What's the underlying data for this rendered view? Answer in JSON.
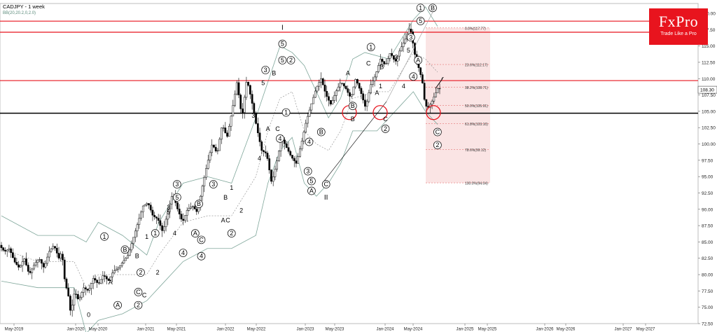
{
  "chart_data": {
    "type": "candlestick",
    "title": "CADJPY - 1 week",
    "indicator": "BB(20,20.2,0,2.0)",
    "current_price": "108.30",
    "y_range": [
      72.5,
      121.5
    ],
    "y_ticks": [
      "120.00",
      "117.50",
      "115.00",
      "112.50",
      "110.00",
      "107.50",
      "105.00",
      "102.50",
      "100.00",
      "97.50",
      "95.00",
      "92.50",
      "90.00",
      "87.50",
      "85.00",
      "82.50",
      "80.00",
      "77.50",
      "75.00",
      "72.50"
    ],
    "x_ticks": [
      "May-2019",
      "Jan-2020",
      "May-2020",
      "Jan-2021",
      "May-2021",
      "Jan-2022",
      "May-2022",
      "Jan-2023",
      "May-2023",
      "Jan-2024",
      "May-2024",
      "Jan-2025",
      "May-2025",
      "Jan-2026",
      "May-2026",
      "Jan-2027",
      "May-2027"
    ],
    "horizontal_lines": [
      {
        "value": 118.8,
        "color": "#e8141e"
      },
      {
        "value": 117.1,
        "color": "#e8141e"
      },
      {
        "value": 109.7,
        "color": "#e8141e"
      },
      {
        "value": 104.7,
        "color": "#000000"
      }
    ],
    "fib_levels": [
      {
        "label": "0.0%(117.77)",
        "value": 117.77
      },
      {
        "label": "23.6%(112.17)",
        "value": 112.17
      },
      {
        "label": "38.2%(108.71)",
        "value": 108.71
      },
      {
        "label": "50.0%(105.91)",
        "value": 105.91
      },
      {
        "label": "61.8%(103.10)",
        "value": 103.1
      },
      {
        "label": "78.6%(99.12)",
        "value": 99.12
      },
      {
        "label": "100.0%(94.04)",
        "value": 94.04
      }
    ],
    "price_path": [
      [
        0.0,
        84.5
      ],
      [
        0.5,
        83.5
      ],
      [
        1.0,
        84.0
      ],
      [
        1.5,
        82.0
      ],
      [
        2.0,
        81.0
      ],
      [
        2.5,
        82.5
      ],
      [
        3.0,
        80.0
      ],
      [
        3.5,
        81.5
      ],
      [
        4.0,
        82.5
      ],
      [
        4.5,
        81.0
      ],
      [
        5.0,
        83.5
      ],
      [
        5.5,
        84.5
      ],
      [
        6.0,
        82.5
      ],
      [
        6.3,
        83.5
      ],
      [
        6.6,
        79.0
      ],
      [
        7.0,
        76.5
      ],
      [
        7.2,
        74.0
      ],
      [
        7.6,
        77.5
      ],
      [
        8.0,
        76.0
      ],
      [
        8.5,
        78.0
      ],
      [
        9.0,
        77.5
      ],
      [
        9.5,
        79.5
      ],
      [
        10.0,
        78.5
      ],
      [
        10.5,
        80.0
      ],
      [
        11.0,
        79.0
      ],
      [
        11.5,
        80.5
      ],
      [
        12.0,
        81.0
      ],
      [
        12.5,
        82.0
      ],
      [
        13.0,
        83.0
      ],
      [
        13.5,
        85.5
      ],
      [
        14.0,
        88.0
      ],
      [
        14.5,
        90.5
      ],
      [
        15.0,
        91.0
      ],
      [
        15.5,
        89.0
      ],
      [
        16.0,
        88.5
      ],
      [
        16.5,
        86.5
      ],
      [
        17.0,
        89.5
      ],
      [
        17.5,
        92.5
      ],
      [
        18.0,
        90.0
      ],
      [
        18.5,
        88.0
      ],
      [
        19.0,
        90.0
      ],
      [
        19.5,
        90.5
      ],
      [
        20.0,
        89.5
      ],
      [
        20.5,
        93.5
      ],
      [
        21.0,
        97.0
      ],
      [
        21.5,
        100.0
      ],
      [
        22.0,
        98.5
      ],
      [
        22.5,
        103.0
      ],
      [
        23.0,
        101.0
      ],
      [
        23.5,
        105.0
      ],
      [
        24.0,
        109.5
      ],
      [
        24.5,
        104.0
      ],
      [
        25.0,
        110.0
      ],
      [
        25.5,
        106.5
      ],
      [
        26.0,
        102.5
      ],
      [
        26.5,
        99.0
      ],
      [
        27.0,
        98.5
      ],
      [
        27.5,
        94.0
      ],
      [
        28.0,
        97.0
      ],
      [
        28.5,
        101.0
      ],
      [
        29.0,
        99.5
      ],
      [
        29.5,
        98.0
      ],
      [
        30.0,
        97.0
      ],
      [
        30.5,
        100.0
      ],
      [
        31.0,
        103.5
      ],
      [
        31.5,
        106.0
      ],
      [
        32.0,
        108.5
      ],
      [
        32.5,
        110.0
      ],
      [
        33.0,
        107.5
      ],
      [
        33.5,
        106.0
      ],
      [
        34.0,
        108.0
      ],
      [
        34.5,
        109.5
      ],
      [
        35.0,
        108.5
      ],
      [
        35.5,
        107.0
      ],
      [
        36.0,
        110.0
      ],
      [
        36.5,
        108.0
      ],
      [
        37.0,
        105.5
      ],
      [
        37.5,
        109.0
      ],
      [
        38.0,
        110.5
      ],
      [
        38.5,
        113.0
      ],
      [
        39.0,
        112.0
      ],
      [
        39.5,
        114.0
      ],
      [
        40.0,
        112.5
      ],
      [
        40.5,
        114.5
      ],
      [
        41.0,
        116.0
      ],
      [
        41.5,
        118.0
      ],
      [
        42.0,
        113.5
      ],
      [
        42.5,
        111.0
      ],
      [
        42.8,
        109.0
      ],
      [
        43.0,
        106.0
      ],
      [
        43.3,
        105.5
      ],
      [
        43.7,
        106.5
      ],
      [
        44.0,
        107.5
      ],
      [
        44.3,
        108.5
      ]
    ],
    "wave_labels": [
      {
        "text": "0",
        "x": 7.2,
        "y": 73.5,
        "circled": false
      },
      {
        "text": "A",
        "x": 9.0,
        "y": 78.5,
        "circled": false
      },
      {
        "text": "B",
        "x": 11.2,
        "y": 82.5,
        "circled": false
      },
      {
        "text": "C",
        "x": 11.8,
        "y": 76.5,
        "circled": false
      },
      {
        "text": "1",
        "x": 8.5,
        "y": 85.5,
        "circled": true
      },
      {
        "text": "2",
        "x": 11.5,
        "y": 80.0,
        "circled": true
      },
      {
        "text": "B",
        "x": 10.2,
        "y": 83.5,
        "circled": true
      },
      {
        "text": "A",
        "x": 9.6,
        "y": 75.0,
        "circled": true
      },
      {
        "text": "C",
        "x": 11.3,
        "y": 77.0,
        "circled": true
      },
      {
        "text": "2",
        "x": 11.3,
        "y": 75.0,
        "circled": true
      },
      {
        "text": "1",
        "x": 12.0,
        "y": 85.5,
        "circled": false
      },
      {
        "text": "1",
        "x": 12.7,
        "y": 86.0,
        "circled": true
      },
      {
        "text": "2",
        "x": 12.9,
        "y": 80.0,
        "circled": false
      },
      {
        "text": "3",
        "x": 14.5,
        "y": 93.5,
        "circled": true
      },
      {
        "text": "5",
        "x": 14.5,
        "y": 91.5,
        "circled": true
      },
      {
        "text": "3",
        "x": 13.8,
        "y": 90.0,
        "circled": false
      },
      {
        "text": "5",
        "x": 13.8,
        "y": 89.2,
        "circled": false
      },
      {
        "text": "4",
        "x": 14.3,
        "y": 86.0,
        "circled": false
      },
      {
        "text": "4",
        "x": 15.0,
        "y": 83.0,
        "circled": true
      },
      {
        "text": "B",
        "x": 16.3,
        "y": 90.5,
        "circled": true
      },
      {
        "text": "A",
        "x": 16.0,
        "y": 86.0,
        "circled": true
      },
      {
        "text": "C",
        "x": 16.5,
        "y": 85.0,
        "circled": true
      },
      {
        "text": "4",
        "x": 16.5,
        "y": 82.5,
        "circled": true
      },
      {
        "text": "3",
        "x": 17.5,
        "y": 93.5,
        "circled": true
      },
      {
        "text": "B",
        "x": 18.5,
        "y": 91.5,
        "circled": false
      },
      {
        "text": "A",
        "x": 18.3,
        "y": 88.0,
        "circled": false
      },
      {
        "text": "C",
        "x": 18.7,
        "y": 88.0,
        "circled": false
      },
      {
        "text": "1",
        "x": 19.0,
        "y": 93.0,
        "circled": false
      },
      {
        "text": "2",
        "x": 19.0,
        "y": 86.0,
        "circled": true
      },
      {
        "text": "2",
        "x": 19.8,
        "y": 89.5,
        "circled": false
      },
      {
        "text": "3",
        "x": 20.8,
        "y": 104.0,
        "circled": false
      },
      {
        "text": "4",
        "x": 21.3,
        "y": 97.5,
        "circled": false
      },
      {
        "text": "3",
        "x": 21.8,
        "y": 111.0,
        "circled": true
      },
      {
        "text": "5",
        "x": 21.6,
        "y": 109.0,
        "circled": false
      },
      {
        "text": "A",
        "x": 22.0,
        "y": 102.0,
        "circled": false
      },
      {
        "text": "B",
        "x": 22.5,
        "y": 110.5,
        "circled": false
      },
      {
        "text": "C",
        "x": 22.8,
        "y": 102.0,
        "circled": false
      },
      {
        "text": "4",
        "x": 23.0,
        "y": 100.5,
        "circled": true
      },
      {
        "text": "I",
        "x": 23.2,
        "y": 117.5,
        "circled": false
      },
      {
        "text": "5",
        "x": 23.2,
        "y": 115.0,
        "circled": true
      },
      {
        "text": "5",
        "x": 23.2,
        "y": 112.5,
        "circled": true
      },
      {
        "text": "2",
        "x": 23.9,
        "y": 112.5,
        "circled": true
      },
      {
        "text": "1",
        "x": 23.5,
        "y": 104.5,
        "circled": true
      },
      {
        "text": "4",
        "x": 25.4,
        "y": 100.0,
        "circled": true
      },
      {
        "text": "3",
        "x": 25.3,
        "y": 95.5,
        "circled": true
      },
      {
        "text": "5",
        "x": 25.6,
        "y": 94.0,
        "circled": true
      },
      {
        "text": "A",
        "x": 25.6,
        "y": 92.5,
        "circled": true
      },
      {
        "text": "B",
        "x": 26.4,
        "y": 101.5,
        "circled": true
      },
      {
        "text": "C",
        "x": 26.8,
        "y": 93.5,
        "circled": true
      },
      {
        "text": "II",
        "x": 26.8,
        "y": 91.5,
        "circled": false
      },
      {
        "text": "A",
        "x": 28.6,
        "y": 110.5,
        "circled": false
      },
      {
        "text": "B",
        "x": 29.0,
        "y": 103.5,
        "circled": false
      },
      {
        "text": "B",
        "x": 29.0,
        "y": 105.5,
        "circled": true
      },
      {
        "text": "1",
        "x": 30.5,
        "y": 114.5,
        "circled": true
      },
      {
        "text": "C",
        "x": 30.3,
        "y": 112.0,
        "circled": false
      },
      {
        "text": "B",
        "x": 31.4,
        "y": 111.5,
        "circled": false
      },
      {
        "text": "A",
        "x": 31.0,
        "y": 107.5,
        "circled": false
      },
      {
        "text": "1",
        "x": 31.3,
        "y": 108.5,
        "circled": false
      },
      {
        "text": "C",
        "x": 31.7,
        "y": 103.5,
        "circled": false
      },
      {
        "text": "2",
        "x": 31.7,
        "y": 102.0,
        "circled": true
      },
      {
        "text": "3",
        "x": 32.6,
        "y": 113.0,
        "circled": false
      },
      {
        "text": "4",
        "x": 33.2,
        "y": 108.5,
        "circled": false
      },
      {
        "text": "3",
        "x": 33.8,
        "y": 116.0,
        "circled": true
      },
      {
        "text": "5",
        "x": 33.6,
        "y": 114.0,
        "circled": false
      },
      {
        "text": "4",
        "x": 34.0,
        "y": 110.0,
        "circled": true
      },
      {
        "text": "A",
        "x": 34.4,
        "y": 112.5,
        "circled": true
      },
      {
        "text": "5",
        "x": 34.6,
        "y": 118.5,
        "circled": true
      },
      {
        "text": "1",
        "x": 34.6,
        "y": 120.5,
        "circled": true
      },
      {
        "text": "B",
        "x": 35.6,
        "y": 120.5,
        "circled": true
      },
      {
        "text": "C",
        "x": 36.0,
        "y": 101.5,
        "circled": true
      },
      {
        "text": "2",
        "x": 36.0,
        "y": 99.5,
        "circled": true
      }
    ],
    "bollinger": {
      "upper": [
        [
          0,
          89
        ],
        [
          3,
          86
        ],
        [
          6,
          86
        ],
        [
          7,
          85
        ],
        [
          8,
          88
        ],
        [
          10,
          86
        ],
        [
          12,
          83
        ],
        [
          13,
          88
        ],
        [
          15,
          94
        ],
        [
          17,
          95
        ],
        [
          19,
          94
        ],
        [
          21,
          104
        ],
        [
          23,
          115
        ],
        [
          24,
          114
        ],
        [
          25,
          112
        ],
        [
          26,
          108
        ],
        [
          27,
          104
        ],
        [
          28,
          107
        ],
        [
          29,
          113
        ],
        [
          30,
          114
        ],
        [
          32,
          113
        ],
        [
          33,
          116
        ],
        [
          34,
          119
        ],
        [
          35,
          121
        ],
        [
          36,
          118
        ]
      ],
      "lower": [
        [
          0,
          79
        ],
        [
          3,
          78
        ],
        [
          6,
          78
        ],
        [
          7,
          71
        ],
        [
          8,
          73
        ],
        [
          10,
          74
        ],
        [
          12,
          76
        ],
        [
          13,
          78
        ],
        [
          15,
          82
        ],
        [
          17,
          84
        ],
        [
          19,
          84
        ],
        [
          21,
          86
        ],
        [
          22,
          94
        ],
        [
          23,
          99
        ],
        [
          24,
          101
        ],
        [
          25,
          94
        ],
        [
          26,
          92
        ],
        [
          27,
          94
        ],
        [
          28,
          97
        ],
        [
          29,
          102
        ],
        [
          31,
          102
        ],
        [
          32,
          104
        ],
        [
          33,
          106
        ],
        [
          34,
          108
        ],
        [
          35,
          105
        ],
        [
          36,
          103
        ]
      ],
      "middle": [
        [
          0,
          84
        ],
        [
          3,
          82
        ],
        [
          6,
          82
        ],
        [
          7,
          78
        ],
        [
          8,
          80
        ],
        [
          10,
          80
        ],
        [
          12,
          80
        ],
        [
          13,
          83
        ],
        [
          15,
          88
        ],
        [
          17,
          89
        ],
        [
          19,
          89
        ],
        [
          21,
          95
        ],
        [
          22,
          102
        ],
        [
          23,
          107
        ],
        [
          24,
          108
        ],
        [
          25,
          102
        ],
        [
          26,
          100
        ],
        [
          27,
          99
        ],
        [
          28,
          102
        ],
        [
          29,
          107
        ],
        [
          31,
          108
        ],
        [
          32,
          108
        ],
        [
          33,
          111
        ],
        [
          34,
          114
        ],
        [
          35,
          113
        ],
        [
          36,
          111
        ]
      ]
    }
  },
  "logo": {
    "brand": "FxPro",
    "tagline": "Trade Like a Pro"
  }
}
